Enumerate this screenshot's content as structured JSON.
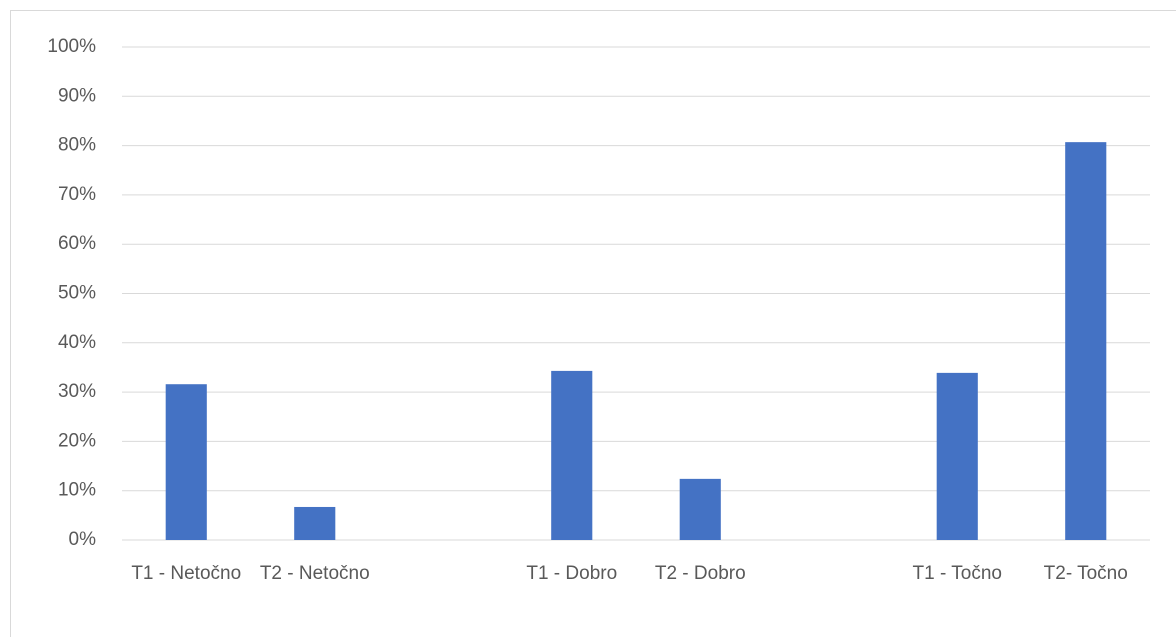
{
  "chart_data": {
    "type": "bar",
    "categories": [
      "T1 - Netočno",
      "T2 - Netočno",
      null,
      "T1 - Dobro",
      "T2 - Dobro",
      null,
      "T1 - Točno",
      "T2- Točno"
    ],
    "values": [
      31.6,
      6.7,
      null,
      34.3,
      12.4,
      null,
      33.9,
      80.7
    ],
    "color": "#4472c4",
    "ylim": [
      0,
      100
    ],
    "yticks": [
      {
        "value": 0,
        "label": "0%"
      },
      {
        "value": 10,
        "label": "10%"
      },
      {
        "value": 20,
        "label": "20%"
      },
      {
        "value": 30,
        "label": "30%"
      },
      {
        "value": 40,
        "label": "40%"
      },
      {
        "value": 50,
        "label": "50%"
      },
      {
        "value": 60,
        "label": "60%"
      },
      {
        "value": 70,
        "label": "70%"
      },
      {
        "value": 80,
        "label": "80%"
      },
      {
        "value": 90,
        "label": "90%"
      },
      {
        "value": 100,
        "label": "100%"
      }
    ],
    "grid": true
  }
}
